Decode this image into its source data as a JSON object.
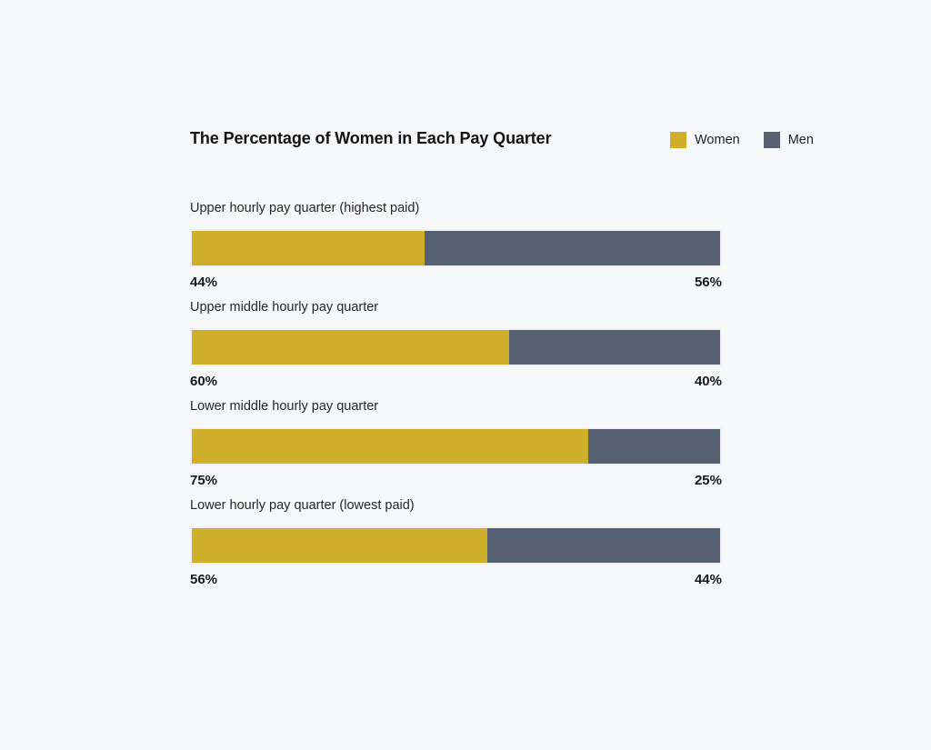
{
  "page": {
    "background_color": "#f6f8fa"
  },
  "chart": {
    "title": "The Percentage of Women in Each Pay Quarter"
  },
  "chart_data": {
    "type": "bar",
    "variant": "stacked-100",
    "orientation": "horizontal",
    "title": "The Percentage of Women in Each Pay Quarter",
    "categories": [
      "Upper hourly pay quarter (highest paid)",
      "Upper middle hourly pay quarter",
      "Lower middle hourly pay quarter",
      "Lower hourly pay quarter (lowest paid)"
    ],
    "series": [
      {
        "name": "Women",
        "color": "#cfaf29",
        "values": [
          44,
          60,
          75,
          56
        ]
      },
      {
        "name": "Men",
        "color": "#556073",
        "values": [
          56,
          40,
          25,
          44
        ]
      }
    ],
    "value_labels": [
      [
        "44%",
        "56%"
      ],
      [
        "60%",
        "40%"
      ],
      [
        "75%",
        "25%"
      ],
      [
        "56%",
        "44%"
      ]
    ],
    "units": "%",
    "xlim": [
      0,
      100
    ],
    "grid": false,
    "legend_position": "top-right"
  }
}
